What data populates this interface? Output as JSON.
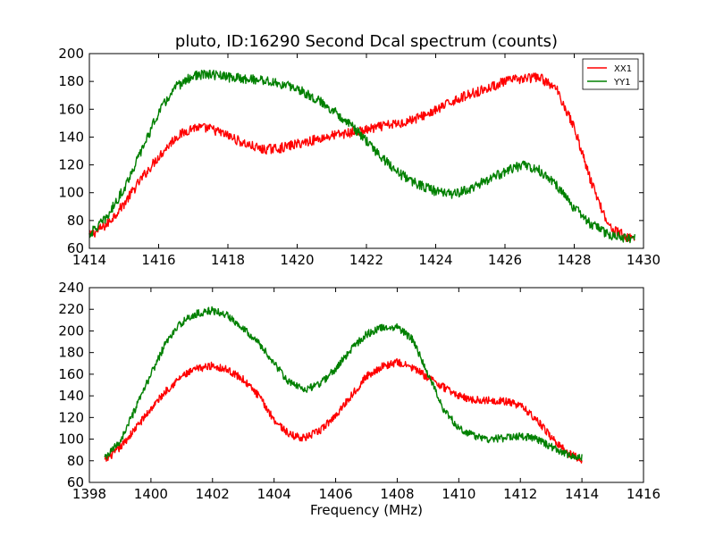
{
  "chart_data": [
    {
      "type": "line",
      "title": "pluto, ID:16290 Second Dcal spectrum (counts)",
      "xlabel": "",
      "ylabel": "",
      "xlim": [
        1414,
        1430
      ],
      "ylim": [
        60,
        200
      ],
      "xticks": [
        "1414",
        "1416",
        "1418",
        "1420",
        "1422",
        "1424",
        "1426",
        "1428",
        "1430"
      ],
      "yticks": [
        "60",
        "80",
        "100",
        "120",
        "140",
        "160",
        "180",
        "200"
      ],
      "legend": "top-right",
      "grid": false,
      "series": [
        {
          "name": "XX1",
          "color": "#ff0000",
          "x": [
            1414.0,
            1414.5,
            1415.0,
            1415.5,
            1416.0,
            1416.5,
            1417.0,
            1417.5,
            1418.0,
            1418.5,
            1419.0,
            1419.5,
            1420.0,
            1420.5,
            1421.0,
            1421.5,
            1422.0,
            1422.5,
            1423.0,
            1423.5,
            1424.0,
            1424.5,
            1425.0,
            1425.5,
            1426.0,
            1426.5,
            1427.0,
            1427.5,
            1428.0,
            1428.5,
            1429.0,
            1429.5,
            1429.75
          ],
          "y": [
            69,
            77,
            92,
            110,
            126,
            140,
            147,
            146,
            141,
            135,
            131,
            132,
            135,
            138,
            141,
            143,
            145,
            148,
            150,
            154,
            159,
            166,
            171,
            175,
            180,
            182,
            183,
            174,
            147,
            107,
            76,
            68,
            68
          ]
        },
        {
          "name": "YY1",
          "color": "#008000",
          "x": [
            1414.0,
            1414.5,
            1415.0,
            1415.5,
            1416.0,
            1416.5,
            1417.0,
            1417.5,
            1418.0,
            1418.5,
            1419.0,
            1419.5,
            1420.0,
            1420.5,
            1421.0,
            1421.5,
            1422.0,
            1422.5,
            1423.0,
            1423.5,
            1424.0,
            1424.5,
            1425.0,
            1425.5,
            1426.0,
            1426.5,
            1427.0,
            1427.5,
            1428.0,
            1428.5,
            1429.0,
            1429.5,
            1429.75
          ],
          "y": [
            70,
            82,
            103,
            130,
            158,
            176,
            184,
            185,
            183,
            182,
            181,
            178,
            175,
            168,
            160,
            150,
            137,
            124,
            113,
            106,
            101,
            99,
            103,
            109,
            115,
            120,
            116,
            105,
            89,
            77,
            70,
            67,
            68
          ]
        }
      ]
    },
    {
      "type": "line",
      "title": "",
      "xlabel": "Frequency (MHz)",
      "ylabel": "",
      "xlim": [
        1398,
        1416
      ],
      "ylim": [
        60,
        240
      ],
      "xticks": [
        "1398",
        "1400",
        "1402",
        "1404",
        "1406",
        "1408",
        "1410",
        "1412",
        "1414",
        "1416"
      ],
      "yticks": [
        "60",
        "80",
        "100",
        "120",
        "140",
        "160",
        "180",
        "200",
        "220",
        "240"
      ],
      "grid": false,
      "series": [
        {
          "name": "XX1",
          "color": "#ff0000",
          "x": [
            1398.5,
            1399.0,
            1399.5,
            1400.0,
            1400.5,
            1401.0,
            1401.5,
            1402.0,
            1402.5,
            1403.0,
            1403.5,
            1404.0,
            1404.5,
            1405.0,
            1405.5,
            1406.0,
            1406.5,
            1407.0,
            1407.5,
            1408.0,
            1408.5,
            1409.0,
            1409.5,
            1410.0,
            1410.5,
            1411.0,
            1411.5,
            1412.0,
            1412.5,
            1413.0,
            1413.5,
            1414.0
          ],
          "y": [
            80,
            92,
            110,
            128,
            145,
            158,
            165,
            168,
            164,
            155,
            140,
            118,
            104,
            101,
            108,
            122,
            140,
            158,
            167,
            171,
            166,
            157,
            148,
            140,
            136,
            136,
            135,
            131,
            119,
            102,
            88,
            81
          ]
        },
        {
          "name": "YY1",
          "color": "#008000",
          "x": [
            1398.5,
            1399.0,
            1399.5,
            1400.0,
            1400.5,
            1401.0,
            1401.5,
            1402.0,
            1402.5,
            1403.0,
            1403.5,
            1404.0,
            1404.5,
            1405.0,
            1405.5,
            1406.0,
            1406.5,
            1407.0,
            1407.5,
            1408.0,
            1408.5,
            1409.0,
            1409.5,
            1410.0,
            1410.5,
            1411.0,
            1411.5,
            1412.0,
            1412.5,
            1413.0,
            1413.5,
            1414.0
          ],
          "y": [
            82,
            98,
            128,
            160,
            190,
            208,
            216,
            219,
            214,
            203,
            189,
            170,
            152,
            146,
            151,
            165,
            183,
            197,
            203,
            204,
            192,
            160,
            128,
            110,
            103,
            100,
            101,
            103,
            100,
            93,
            86,
            83
          ]
        }
      ]
    }
  ]
}
